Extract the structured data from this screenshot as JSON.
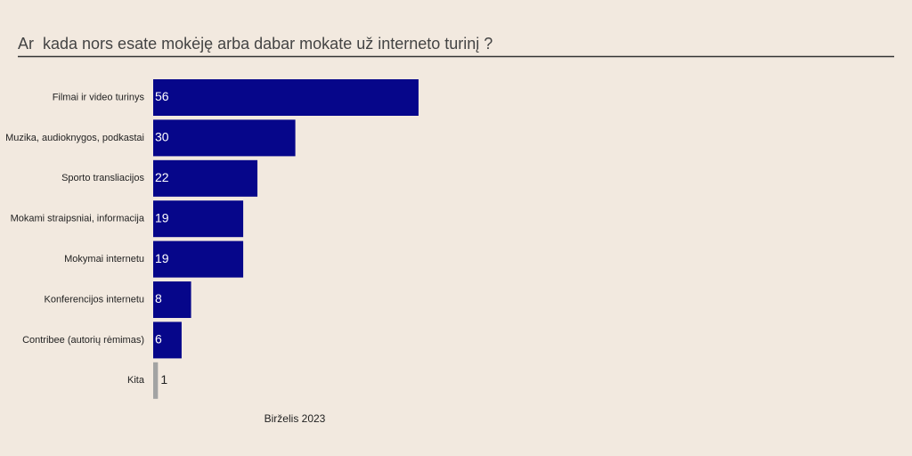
{
  "chart_data": {
    "type": "hbar",
    "title": "Ar  kada nors esate mokėję arba dabar mokate už interneto turinį ?",
    "categories": [
      "Filmai ir video turinys",
      "Muzika, audioknygos, podkastai",
      "Sporto transliacijos",
      "Mokami straipsniai, informacija",
      "Mokymai internetu",
      "Konferencijos internetu",
      "Contribee (autorių rėmimas)",
      "Kita"
    ],
    "values": [
      56,
      30,
      22,
      19,
      19,
      8,
      6,
      1
    ],
    "colors": [
      "#06068a",
      "#06068a",
      "#06068a",
      "#06068a",
      "#06068a",
      "#06068a",
      "#06068a",
      "#a3a3a3"
    ],
    "xlabel": "Birželis 2023"
  }
}
